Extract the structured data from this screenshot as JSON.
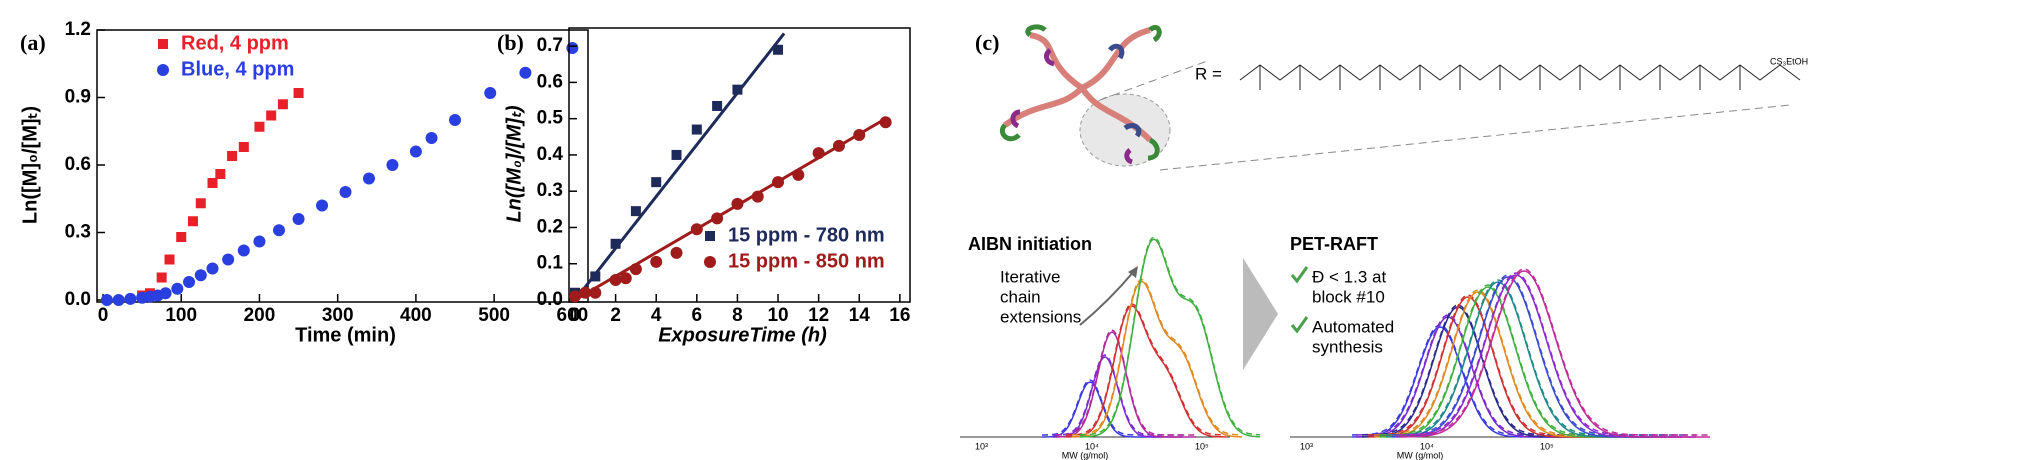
{
  "chart_data": [
    {
      "type": "scatter",
      "panel_label": "(a)",
      "xlabel": "Time (min)",
      "ylabel": "Ln([M]₀/[M]ₜ)",
      "xlim": [
        0,
        620
      ],
      "ylim": [
        0,
        1.2
      ],
      "xticks": [
        0,
        100,
        200,
        300,
        400,
        500,
        600
      ],
      "yticks": [
        {
          "value": 0,
          "label": "0.0"
        },
        0.3,
        0.6,
        0.9,
        1.2
      ],
      "legend": "upper left",
      "series": [
        {
          "name": "Red, 4 ppm",
          "color": "#e8202a",
          "marker": "square",
          "x": [
            50,
            60,
            75,
            85,
            100,
            115,
            125,
            140,
            150,
            165,
            180,
            200,
            215,
            230,
            250
          ],
          "values": [
            0.02,
            0.03,
            0.1,
            0.18,
            0.28,
            0.35,
            0.43,
            0.52,
            0.56,
            0.64,
            0.68,
            0.77,
            0.82,
            0.87,
            0.92
          ]
        },
        {
          "name": "Blue, 4 ppm",
          "color": "#2a3fe0",
          "marker": "circle",
          "x": [
            5,
            20,
            35,
            50,
            60,
            70,
            80,
            95,
            110,
            125,
            140,
            160,
            180,
            200,
            225,
            250,
            280,
            310,
            340,
            370,
            400,
            420,
            450,
            495,
            540,
            600
          ],
          "values": [
            0,
            0,
            0.005,
            0.01,
            0.015,
            0.02,
            0.03,
            0.05,
            0.08,
            0.11,
            0.14,
            0.18,
            0.22,
            0.26,
            0.31,
            0.36,
            0.42,
            0.48,
            0.54,
            0.6,
            0.66,
            0.72,
            0.8,
            0.92,
            1.01,
            1.12
          ]
        }
      ]
    },
    {
      "type": "scatter",
      "panel_label": "(b)",
      "xlabel": "ExposureTime (h)",
      "ylabel": "Ln([M₀]/[M]ₜ)",
      "xlim": [
        0,
        16.5
      ],
      "ylim": [
        0,
        0.75
      ],
      "xticks": [
        0,
        2,
        4,
        6,
        8,
        10,
        12,
        14,
        16
      ],
      "yticks": [
        {
          "value": 0,
          "label": "0.0"
        },
        0.1,
        0.2,
        0.3,
        0.4,
        0.5,
        0.6,
        0.7
      ],
      "legend": "lower right",
      "series": [
        {
          "name": "15 ppm - 780 nm",
          "color": "#1d2a5a",
          "marker": "square",
          "x": [
            0,
            1,
            2,
            3,
            4,
            5,
            6,
            7,
            8,
            10
          ],
          "values": [
            0.02,
            0.065,
            0.155,
            0.245,
            0.325,
            0.4,
            0.47,
            0.535,
            0.58,
            0.69
          ],
          "fit": {
            "x": [
              0,
              10.3
            ],
            "values": [
              0,
              0.735
            ]
          }
        },
        {
          "name": "15 ppm - 850 nm",
          "color": "#a01c1c",
          "marker": "circle",
          "x": [
            0,
            0.5,
            1,
            2,
            2.5,
            3,
            4,
            5,
            6,
            7,
            8,
            9,
            10,
            11,
            12,
            13,
            14,
            15.3
          ],
          "values": [
            0.01,
            0.02,
            0.02,
            0.055,
            0.06,
            0.085,
            0.105,
            0.13,
            0.195,
            0.225,
            0.265,
            0.285,
            0.325,
            0.345,
            0.405,
            0.425,
            0.455,
            0.49
          ],
          "fit": {
            "x": [
              0,
              15.3
            ],
            "values": [
              0,
              0.5
            ]
          }
        }
      ]
    }
  ],
  "diagram": {
    "panel_label": "(c)",
    "r_label": "R =",
    "left_title": "AIBN initiation",
    "annotation": [
      "Iterative",
      "chain",
      "extensions"
    ],
    "right_title": "PET-RAFT",
    "notes": [
      [
        "Đ < 1.3 at",
        "block #10"
      ],
      [
        "Automated",
        "synthesis"
      ]
    ],
    "left_xticks": [
      "10³",
      "10⁴",
      "10⁵"
    ],
    "right_xticks": [
      "10³",
      "10⁴",
      "10⁵"
    ],
    "xlabel": "MW (g/mol)",
    "end_group": "CS₃EtOH"
  }
}
